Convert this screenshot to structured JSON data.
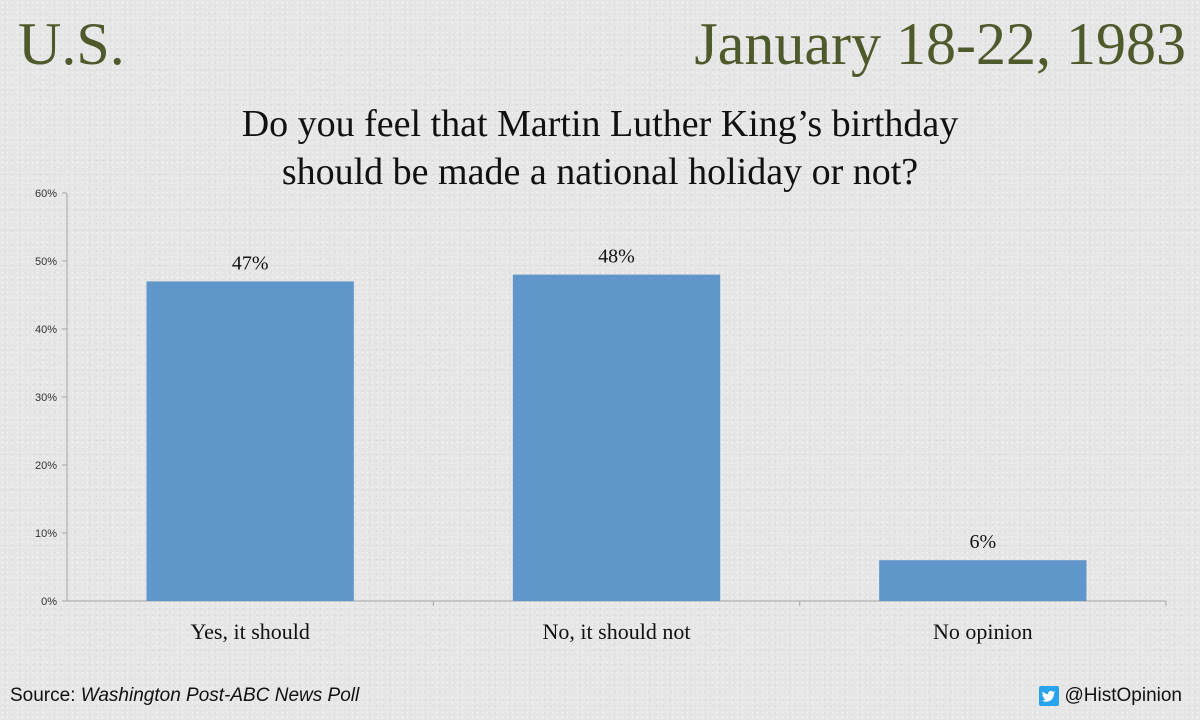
{
  "header": {
    "region": "U.S.",
    "date": "January 18-22, 1983"
  },
  "question": {
    "line1": "Do you feel that Martin Luther King’s birthday",
    "line2": "should be made a national holiday or not?"
  },
  "chart_data": {
    "type": "bar",
    "title": "Do you feel that Martin Luther King’s birthday should be made a national holiday or not?",
    "categories": [
      "Yes, it should",
      "No, it should not",
      "No opinion"
    ],
    "values": [
      47,
      48,
      6
    ],
    "value_labels": [
      "47%",
      "48%",
      "6%"
    ],
    "ylim": [
      0,
      60
    ],
    "yticks": [
      0,
      10,
      20,
      30,
      40,
      50,
      60
    ],
    "ytick_labels": [
      "0%",
      "10%",
      "20%",
      "30%",
      "40%",
      "50%",
      "60%"
    ],
    "xlabel": "",
    "ylabel": "",
    "grid": false,
    "bar_color": "#6096c9",
    "axis_color": "#a6a6a6"
  },
  "footer": {
    "source_prefix": "Source: ",
    "source_name": "Washington Post-ABC News Poll",
    "handle": "@HistOpinion",
    "handle_icon": "twitter-icon",
    "icon_color": "#2aa3ef"
  }
}
